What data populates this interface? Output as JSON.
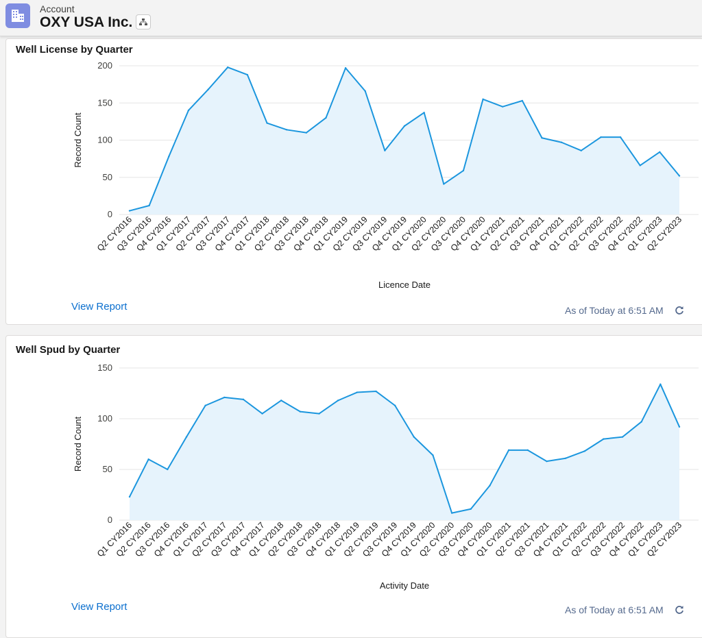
{
  "header": {
    "object_label": "Account",
    "record_name": "OXY USA Inc.",
    "account_icon": "building-icon",
    "hierarchy_icon": "hierarchy-icon"
  },
  "colors": {
    "line": "#1b96de",
    "fill": "#e6f3fc",
    "grid": "#e5e5e5",
    "link": "#0b6fce",
    "icon_bg": "#7f8de1"
  },
  "cards": [
    {
      "title": "Well License by Quarter",
      "view_report": "View Report",
      "as_of": "As of Today at 6:51 AM",
      "refresh_icon": "refresh-icon"
    },
    {
      "title": "Well Spud by Quarter",
      "view_report": "View Report",
      "as_of": "As of Today at 6:51 AM",
      "refresh_icon": "refresh-icon"
    }
  ],
  "chart_data": [
    {
      "type": "area",
      "title": "Well License by Quarter",
      "xlabel": "Licence Date",
      "ylabel": "Record Count",
      "ylim": [
        0,
        200
      ],
      "yticks": [
        0,
        50,
        100,
        150,
        200
      ],
      "grid": true,
      "categories": [
        "Q2 CY2016",
        "Q3 CY2016",
        "Q4 CY2016",
        "Q1 CY2017",
        "Q2 CY2017",
        "Q3 CY2017",
        "Q4 CY2017",
        "Q1 CY2018",
        "Q2 CY2018",
        "Q3 CY2018",
        "Q4 CY2018",
        "Q1 CY2019",
        "Q2 CY2019",
        "Q3 CY2019",
        "Q4 CY2019",
        "Q1 CY2020",
        "Q2 CY2020",
        "Q3 CY2020",
        "Q4 CY2020",
        "Q1 CY2021",
        "Q2 CY2021",
        "Q3 CY2021",
        "Q4 CY2021",
        "Q1 CY2022",
        "Q2 CY2022",
        "Q3 CY2022",
        "Q4 CY2022",
        "Q1 CY2023",
        "Q2 CY2023"
      ],
      "values": [
        5,
        12,
        78,
        140,
        168,
        198,
        188,
        123,
        114,
        110,
        130,
        197,
        166,
        86,
        119,
        137,
        41,
        59,
        155,
        145,
        153,
        103,
        97,
        86,
        104,
        104,
        66,
        84,
        52
      ]
    },
    {
      "type": "area",
      "title": "Well Spud by Quarter",
      "xlabel": "Activity Date",
      "ylabel": "Record Count",
      "ylim": [
        0,
        150
      ],
      "yticks": [
        0,
        50,
        100,
        150
      ],
      "grid": true,
      "categories": [
        "Q1 CY2016",
        "Q2 CY2016",
        "Q3 CY2016",
        "Q4 CY2016",
        "Q1 CY2017",
        "Q2 CY2017",
        "Q3 CY2017",
        "Q4 CY2017",
        "Q1 CY2018",
        "Q2 CY2018",
        "Q3 CY2018",
        "Q4 CY2018",
        "Q1 CY2019",
        "Q2 CY2019",
        "Q3 CY2019",
        "Q4 CY2019",
        "Q1 CY2020",
        "Q2 CY2020",
        "Q3 CY2020",
        "Q4 CY2020",
        "Q1 CY2021",
        "Q2 CY2021",
        "Q3 CY2021",
        "Q4 CY2021",
        "Q1 CY2022",
        "Q2 CY2022",
        "Q3 CY2022",
        "Q4 CY2022",
        "Q1 CY2023",
        "Q2 CY2023"
      ],
      "values": [
        23,
        60,
        50,
        82,
        113,
        121,
        119,
        105,
        118,
        107,
        105,
        118,
        126,
        127,
        113,
        82,
        64,
        7,
        11,
        34,
        69,
        69,
        58,
        61,
        68,
        80,
        82,
        97,
        134,
        92
      ]
    }
  ]
}
